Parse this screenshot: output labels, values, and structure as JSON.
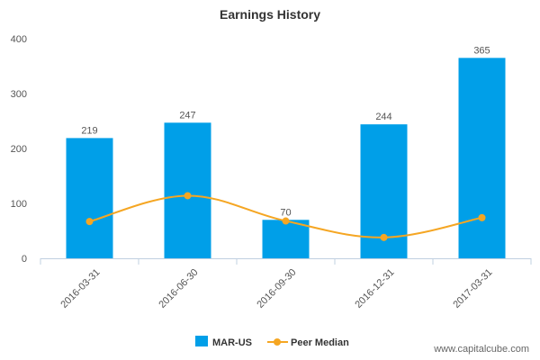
{
  "chart_data": {
    "type": "bar",
    "title": "Earnings History",
    "categories": [
      "2016-03-31",
      "2016-06-30",
      "2016-09-30",
      "2016-12-31",
      "2017-03-31"
    ],
    "series": [
      {
        "name": "MAR-US",
        "type": "bar",
        "values": [
          219,
          247,
          70,
          244,
          365
        ],
        "labels": [
          "219",
          "247",
          "70",
          "244",
          "365"
        ],
        "color": "#009fe8"
      },
      {
        "name": "Peer Median",
        "type": "line",
        "values": [
          67,
          114,
          68,
          38,
          74
        ],
        "color": "#f5a623"
      }
    ],
    "ylim": [
      0,
      400
    ],
    "yticks": [
      "0",
      "100",
      "200",
      "300",
      "400"
    ],
    "grid": false,
    "legend": "bottom-center"
  },
  "credit": "www.capitalcube.com"
}
